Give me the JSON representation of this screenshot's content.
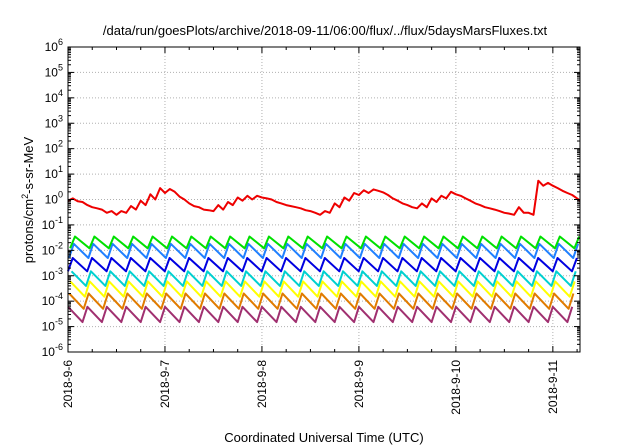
{
  "chart_data": {
    "type": "line",
    "title": "/data/run/goesPlots/archive/2018-09-11/06:00/flux/../flux/5daysMarsFluxes.txt",
    "xlabel": "Coordinated Universal Time (UTC)",
    "ylabel_main": "protons/cm",
    "ylabel_sup": "2",
    "ylabel_tail": "-s-sr-MeV",
    "y_scale": "log",
    "ylim": [
      1e-06,
      1000000.0
    ],
    "xlim": [
      0,
      5.28
    ],
    "x_unit": "days since 2018-9-6 00:00 UTC",
    "grid": true,
    "legend": "none",
    "y_tick_exponents": [
      -6,
      -5,
      -4,
      -3,
      -2,
      -1,
      0,
      1,
      2,
      3,
      4,
      5,
      6
    ],
    "y_tick_base": "10",
    "x_ticks": [
      {
        "x": 0,
        "label": "2018-9-6"
      },
      {
        "x": 1,
        "label": "2018-9-7"
      },
      {
        "x": 2,
        "label": "2018-9-8"
      },
      {
        "x": 3,
        "label": "2018-9-9"
      },
      {
        "x": 4,
        "label": "2018-9-10"
      },
      {
        "x": 5,
        "label": "2018-9-11"
      }
    ],
    "series": [
      {
        "color": "#a03070",
        "low": 1.5e-05,
        "high": 6e-05
      },
      {
        "color": "#e07b00",
        "low": 5e-05,
        "high": 0.0002
      },
      {
        "color": "#ffff00",
        "low": 0.00015,
        "high": 0.0006
      },
      {
        "color": "#00d0d0",
        "low": 0.0004,
        "high": 0.0015
      },
      {
        "color": "#0000e0",
        "low": 0.0015,
        "high": 0.005
      },
      {
        "color": "#2080ff",
        "low": 0.005,
        "high": 0.018
      },
      {
        "color": "#00e000",
        "low": 0.012,
        "high": 0.035
      },
      {
        "color": "#ee0000",
        "x": [
          0,
          0.05,
          0.1,
          0.15,
          0.2,
          0.25,
          0.3,
          0.35,
          0.4,
          0.45,
          0.5,
          0.55,
          0.6,
          0.65,
          0.7,
          0.75,
          0.8,
          0.85,
          0.9,
          0.95,
          1.0,
          1.05,
          1.1,
          1.15,
          1.2,
          1.25,
          1.3,
          1.35,
          1.4,
          1.45,
          1.5,
          1.55,
          1.6,
          1.65,
          1.7,
          1.75,
          1.8,
          1.85,
          1.9,
          1.95,
          2.0,
          2.05,
          2.1,
          2.15,
          2.2,
          2.25,
          2.3,
          2.35,
          2.4,
          2.45,
          2.5,
          2.55,
          2.6,
          2.65,
          2.7,
          2.75,
          2.8,
          2.85,
          2.9,
          2.95,
          3.0,
          3.05,
          3.1,
          3.15,
          3.2,
          3.25,
          3.3,
          3.35,
          3.4,
          3.45,
          3.5,
          3.55,
          3.6,
          3.65,
          3.7,
          3.75,
          3.8,
          3.85,
          3.9,
          3.95,
          4.0,
          4.05,
          4.1,
          4.15,
          4.2,
          4.25,
          4.3,
          4.35,
          4.4,
          4.45,
          4.5,
          4.55,
          4.6,
          4.65,
          4.7,
          4.75,
          4.8,
          4.85,
          4.9,
          4.95,
          5.0,
          5.05,
          5.1,
          5.15,
          5.2,
          5.25,
          5.28
        ],
        "y": [
          0.9,
          1.1,
          0.85,
          0.8,
          0.6,
          0.5,
          0.45,
          0.4,
          0.3,
          0.35,
          0.25,
          0.35,
          0.3,
          0.55,
          0.4,
          0.9,
          0.6,
          1.6,
          1.0,
          2.8,
          1.8,
          2.6,
          2.0,
          1.3,
          1.0,
          0.7,
          0.55,
          0.5,
          0.4,
          0.38,
          0.35,
          0.6,
          0.4,
          0.8,
          0.6,
          1.2,
          0.9,
          1.4,
          1.0,
          1.4,
          1.2,
          1.1,
          1.0,
          0.8,
          0.7,
          0.6,
          0.55,
          0.5,
          0.45,
          0.38,
          0.35,
          0.3,
          0.25,
          0.35,
          0.3,
          0.7,
          0.5,
          1.2,
          0.9,
          1.8,
          1.5,
          2.3,
          1.8,
          2.5,
          2.2,
          1.9,
          1.5,
          1.1,
          0.9,
          0.7,
          0.6,
          0.5,
          0.45,
          0.7,
          0.5,
          1.1,
          0.8,
          1.4,
          1.1,
          2.0,
          1.6,
          1.4,
          1.1,
          0.9,
          0.7,
          0.6,
          0.5,
          0.45,
          0.4,
          0.35,
          0.3,
          0.28,
          0.25,
          0.5,
          0.3,
          0.3,
          0.25,
          5.5,
          3.5,
          4.5,
          3.5,
          2.8,
          2.2,
          1.8,
          1.5,
          1.1,
          0.9
        ]
      }
    ]
  }
}
